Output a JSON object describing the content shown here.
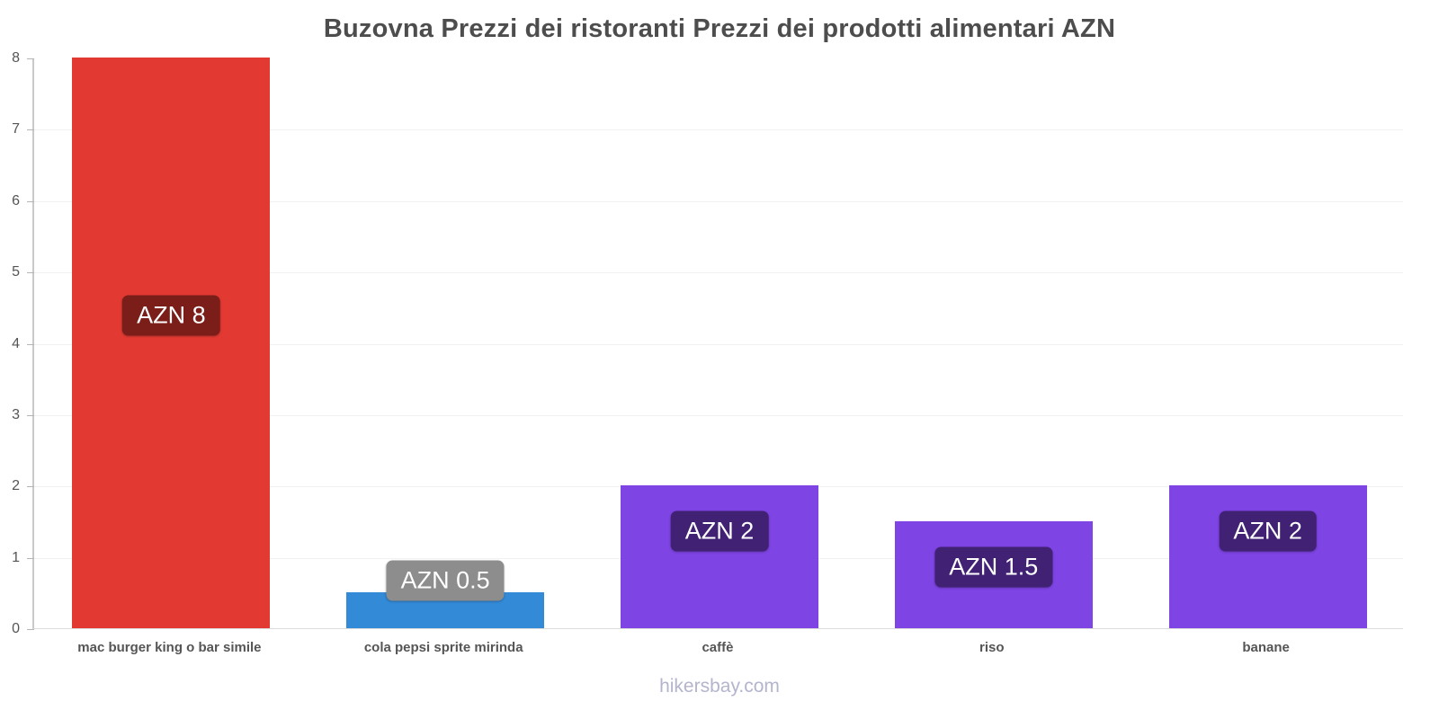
{
  "title": "Buzovna Prezzi dei ristoranti Prezzi dei prodotti alimentari AZN",
  "footer": "hikersbay.com",
  "chart_data": {
    "type": "bar",
    "title": "Buzovna Prezzi dei ristoranti Prezzi dei prodotti alimentari AZN",
    "categories": [
      "mac burger king o bar simile",
      "cola pepsi sprite mirinda",
      "caffè",
      "riso",
      "banane"
    ],
    "values": [
      8,
      0.5,
      2,
      1.5,
      2
    ],
    "data_labels": [
      "AZN 8",
      "AZN 0.5",
      "AZN 2",
      "AZN 1.5",
      "AZN 2"
    ],
    "bar_colors": [
      "#e23a33",
      "#338ad6",
      "#7e44e4",
      "#7e44e4",
      "#7e44e4"
    ],
    "label_bg_colors": [
      "#7b1d18",
      "#8d8d8d",
      "#412174",
      "#412174",
      "#412174"
    ],
    "currency": "AZN",
    "xlabel": "",
    "ylabel": "",
    "ylim": [
      0,
      8
    ],
    "yticks": [
      0,
      1,
      2,
      3,
      4,
      5,
      6,
      7,
      8
    ],
    "grid": true,
    "legend": false
  }
}
